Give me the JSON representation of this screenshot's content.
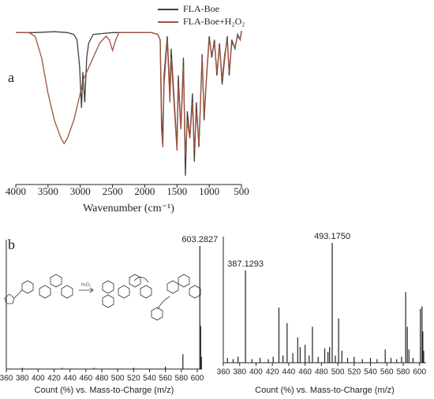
{
  "chart_data": [
    {
      "type": "line",
      "label": "a",
      "xlabel": "Wavenumber (cm⁻¹)",
      "xlim": [
        4000,
        500
      ],
      "xticks": [
        4000,
        3500,
        3000,
        2500,
        2000,
        1500,
        1000,
        500
      ],
      "ylim": [
        0,
        100
      ],
      "legend": "top-right",
      "series": [
        {
          "name": "FLA-Boe",
          "color": "#404040",
          "x": [
            4000,
            3700,
            3400,
            3200,
            3100,
            3050,
            3010,
            2980,
            2960,
            2930,
            2900,
            2870,
            2800,
            2500,
            2300,
            2000,
            1900,
            1800,
            1760,
            1740,
            1720,
            1700,
            1650,
            1610,
            1590,
            1500,
            1480,
            1440,
            1400,
            1370,
            1340,
            1300,
            1260,
            1230,
            1200,
            1160,
            1110,
            1080,
            1040,
            1000,
            960,
            920,
            880,
            840,
            800,
            760,
            720,
            690,
            650,
            600,
            560,
            520,
            500
          ],
          "values": [
            84,
            84,
            84.5,
            84,
            83,
            80,
            65,
            42,
            62,
            45,
            70,
            78,
            83,
            84,
            84,
            84,
            84,
            83,
            80,
            40,
            20,
            60,
            82,
            50,
            75,
            20,
            60,
            30,
            70,
            4,
            40,
            25,
            50,
            12,
            45,
            20,
            72,
            35,
            60,
            82,
            70,
            80,
            60,
            78,
            55,
            70,
            82,
            60,
            80,
            75,
            83,
            80,
            85
          ]
        },
        {
          "name": "FLA-Boe+H₂O₂",
          "color": "#a0523d",
          "x": [
            4000,
            3800,
            3700,
            3600,
            3500,
            3400,
            3300,
            3250,
            3200,
            3100,
            3000,
            2950,
            2900,
            2800,
            2700,
            2600,
            2550,
            2500,
            2450,
            2400,
            2300,
            2100,
            2000,
            1900,
            1800,
            1760,
            1740,
            1720,
            1700,
            1650,
            1610,
            1590,
            1500,
            1480,
            1440,
            1400,
            1370,
            1340,
            1300,
            1260,
            1230,
            1200,
            1160,
            1110,
            1080,
            1040,
            1000,
            960,
            920,
            880,
            840,
            800,
            760,
            720,
            690,
            650,
            600,
            560,
            520,
            500
          ],
          "values": [
            84,
            84,
            82,
            70,
            50,
            35,
            25,
            22,
            25,
            35,
            50,
            58,
            62,
            70,
            78,
            82,
            80,
            74,
            80,
            84,
            84,
            84,
            84,
            84,
            83,
            80,
            30,
            20,
            55,
            80,
            45,
            70,
            18,
            55,
            30,
            65,
            15,
            35,
            25,
            45,
            18,
            40,
            22,
            70,
            38,
            60,
            80,
            72,
            78,
            62,
            76,
            58,
            72,
            80,
            62,
            78,
            76,
            82,
            80,
            84
          ]
        }
      ]
    },
    {
      "type": "stem",
      "label": "b",
      "annotation": "H₂O₂",
      "xlabel": "Count (%) vs. Mass-to-Charge (m/z)",
      "color": "#222",
      "xlim": [
        360,
        606
      ],
      "xticks": [
        360,
        380,
        400,
        420,
        440,
        460,
        480,
        500,
        520,
        540,
        560,
        580,
        600
      ],
      "ylim": [
        0,
        100
      ],
      "x": [
        380,
        430,
        470,
        520,
        560,
        582,
        603.2827,
        604.3,
        605.3
      ],
      "values": [
        1,
        1,
        1,
        1,
        2,
        12,
        100,
        35,
        10
      ],
      "x_labels": [
        null,
        null,
        null,
        null,
        null,
        null,
        "603.2827",
        null,
        null
      ]
    },
    {
      "type": "stem",
      "xlabel": "Count (%) vs. Mass-to-Charge (m/z)",
      "color": "#222",
      "xlim": [
        360,
        608
      ],
      "xticks": [
        360,
        380,
        400,
        420,
        440,
        460,
        480,
        500,
        520,
        540,
        560,
        580,
        600
      ],
      "ylim": [
        0,
        100
      ],
      "x": [
        365,
        372,
        378,
        387.1293,
        395,
        405,
        415,
        421,
        428,
        433,
        438,
        445,
        451,
        454,
        460,
        465,
        469,
        476,
        484,
        488,
        490,
        493.175,
        497,
        501,
        505,
        512,
        520,
        530,
        540,
        548,
        558,
        565,
        572,
        578,
        583,
        585,
        587,
        592,
        601,
        603,
        604,
        605
      ],
      "values": [
        4,
        3,
        5,
        77,
        3,
        4,
        3,
        5,
        46,
        6,
        33,
        8,
        21,
        13,
        15,
        6,
        30,
        5,
        12,
        9,
        13,
        100,
        6,
        37,
        10,
        4,
        5,
        3,
        4,
        3,
        11,
        4,
        3,
        5,
        59,
        30,
        11,
        4,
        45,
        47,
        26,
        10
      ],
      "x_labels": [
        null,
        null,
        null,
        "387.1293",
        null,
        null,
        null,
        null,
        null,
        null,
        null,
        null,
        null,
        null,
        null,
        null,
        null,
        null,
        null,
        null,
        null,
        "493.1750",
        null,
        null,
        null,
        null,
        null,
        null,
        null,
        null,
        null,
        null,
        null,
        null,
        null,
        null,
        null,
        null,
        null,
        null,
        null,
        null
      ]
    }
  ]
}
